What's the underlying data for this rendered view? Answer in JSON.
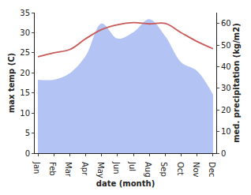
{
  "chart_data": {
    "type": "line",
    "xlabel": "date (month)",
    "ylabel": "max temp (C)",
    "y2label": "med. precipitation (kg/m2)",
    "categories": [
      "Jan",
      "Feb",
      "Mar",
      "Apr",
      "May",
      "Jun",
      "Jul",
      "Aug",
      "Sep",
      "Oct",
      "Nov",
      "Dec"
    ],
    "series": [
      {
        "type": "line",
        "color": "#c85a5a",
        "values": [
          24.0,
          25.0,
          25.8,
          28.5,
          30.8,
          32.0,
          32.5,
          32.2,
          32.3,
          30.0,
          27.8,
          26.0
        ]
      },
      {
        "type": "area",
        "color": "#b3c3f3",
        "axis": "y2",
        "values": [
          34,
          34,
          37,
          45,
          60,
          53,
          56,
          62,
          54,
          42,
          38,
          27
        ]
      }
    ],
    "ylim": [
      0,
      35
    ],
    "yticks": [
      0,
      5,
      10,
      15,
      20,
      25,
      30,
      35
    ],
    "y2lim": [
      0,
      65
    ],
    "y2ticks": [
      0,
      10,
      20,
      30,
      40,
      50,
      60
    ],
    "grid": false
  }
}
